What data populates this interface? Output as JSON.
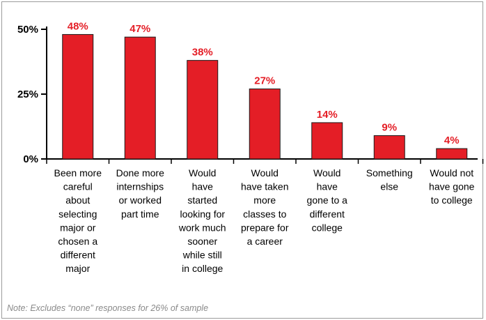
{
  "chart_data": {
    "type": "bar",
    "categories": [
      "Been more careful about selecting major or chosen a different major",
      "Done more internships or worked part time",
      "Would have started looking for work much sooner while still in college",
      "Would have taken more classes to prepare for a career",
      "Would have gone to a different college",
      "Something else",
      "Would not have gone to college"
    ],
    "category_lines": [
      [
        "Been more",
        "careful",
        "about",
        "selecting",
        "major or",
        "chosen a",
        "different",
        "major"
      ],
      [
        "Done more",
        "internships",
        "or worked",
        "part time"
      ],
      [
        "Would",
        "have",
        "started",
        "looking for",
        "work much",
        "sooner",
        "while still",
        "in college"
      ],
      [
        "Would",
        "have taken",
        "more",
        "classes to",
        "prepare for",
        "a career"
      ],
      [
        "Would",
        "have",
        "gone to a",
        "different",
        "college"
      ],
      [
        "Something",
        "else"
      ],
      [
        "Would not",
        "have gone",
        "to college"
      ]
    ],
    "values": [
      48,
      47,
      38,
      27,
      14,
      9,
      4
    ],
    "data_labels": [
      "48%",
      "47%",
      "38%",
      "27%",
      "14%",
      "9%",
      "4%"
    ],
    "yticks": [
      {
        "value": 0,
        "label": "0%"
      },
      {
        "value": 25,
        "label": "25%"
      },
      {
        "value": 50,
        "label": "50%"
      }
    ],
    "ylim": [
      0,
      50
    ],
    "title": "",
    "xlabel": "",
    "ylabel": "",
    "grid": false,
    "colors": {
      "bar": "#e41e26",
      "bar_edge": "#1a1a1a",
      "label": "#e41e26",
      "axis": "#000000"
    }
  },
  "note": "Note: Excludes “none” responses for 26% of sample"
}
